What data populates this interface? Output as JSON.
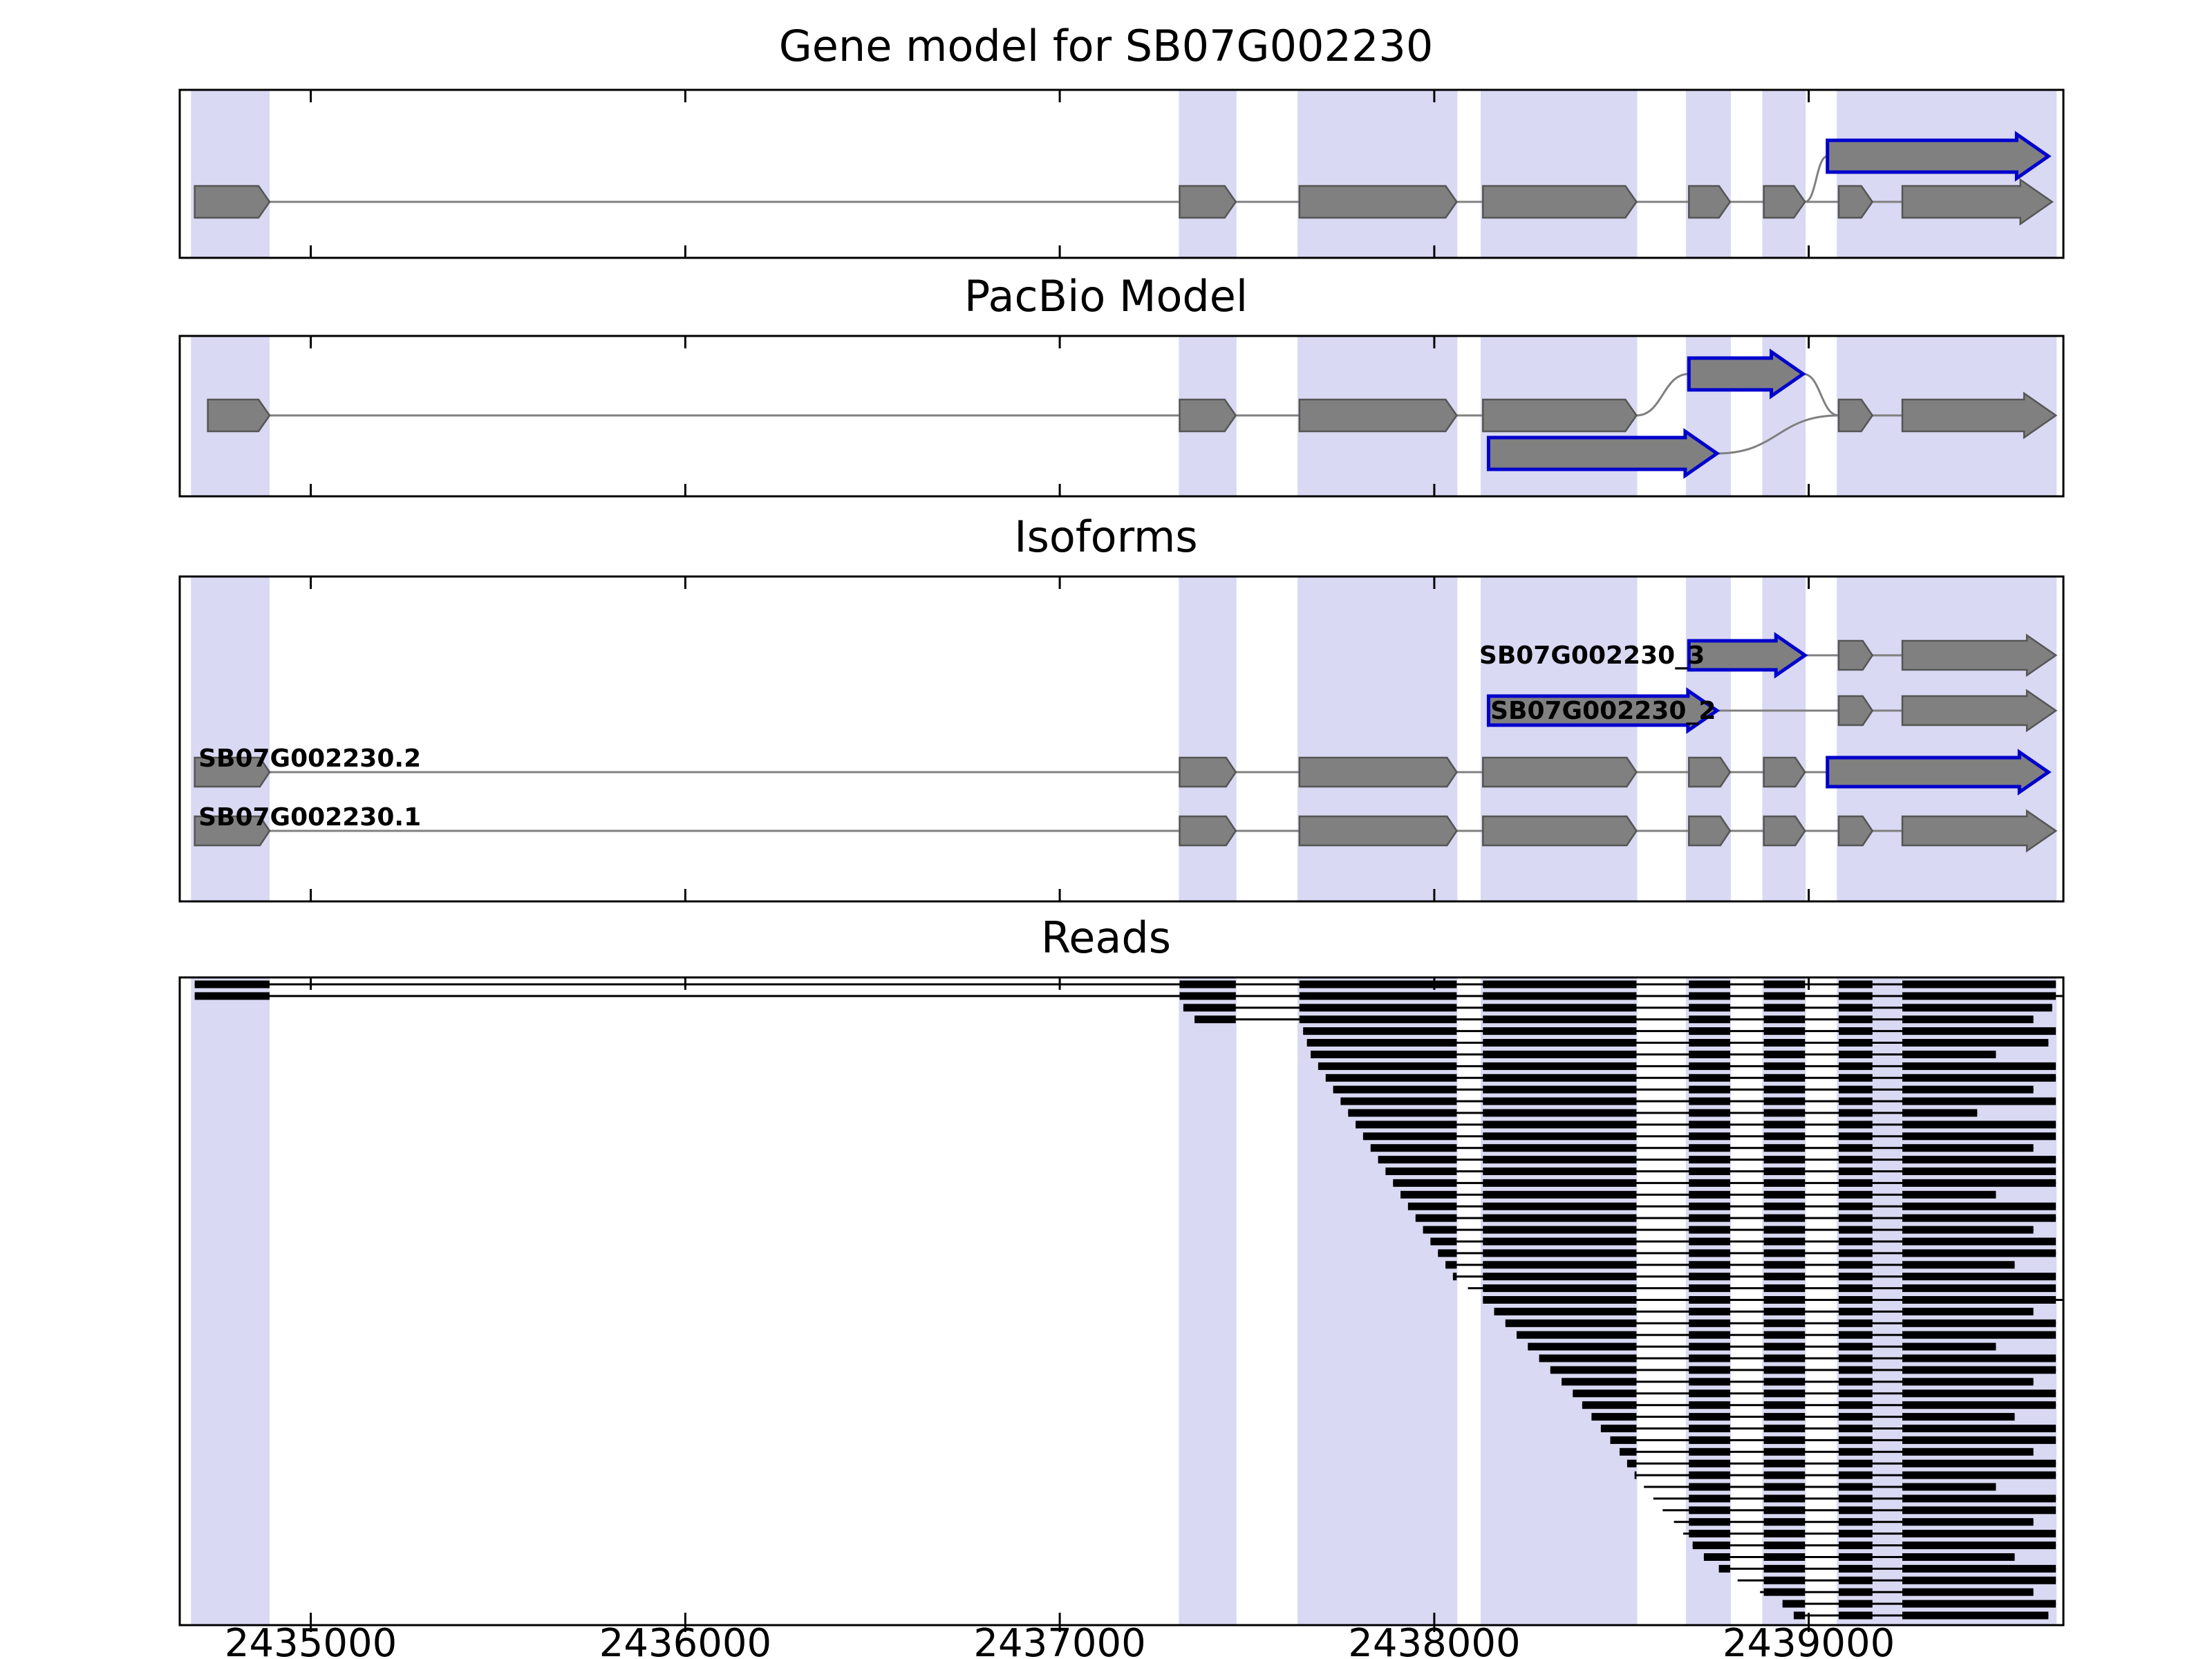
{
  "figure": {
    "titles": [
      "Gene model for SB07G002230",
      "PacBio Model",
      "Isoforms",
      "Reads"
    ]
  },
  "chart_data": {
    "type": "genome-browser-tracks",
    "x_range": [
      2434650,
      2439680
    ],
    "x_ticks": [
      2435000,
      2436000,
      2437000,
      2438000,
      2439000
    ],
    "highlight_regions": [
      [
        2434680,
        2434890
      ],
      [
        2437318,
        2437472
      ],
      [
        2437635,
        2438062
      ],
      [
        2438124,
        2438542
      ],
      [
        2438672,
        2438792
      ],
      [
        2438876,
        2438992
      ],
      [
        2439075,
        2439662
      ]
    ],
    "colors": {
      "band": "#d9d9f3",
      "exon_fill": "#808080",
      "exon_edge": "#555555",
      "blue_edge": "#0000cd",
      "line": "#808080",
      "read": "#000000",
      "axis": "#000000"
    },
    "tracks": [
      {
        "title": "Gene model for SB07G002230",
        "type": "gene_model",
        "main_exons": [
          {
            "span": [
              2434690,
              2434890
            ]
          },
          {
            "span": [
              2437320,
              2437470
            ]
          },
          {
            "span": [
              2437640,
              2438060
            ]
          },
          {
            "span": [
              2438130,
              2438540
            ]
          },
          {
            "span": [
              2438680,
              2438790
            ]
          },
          {
            "span": [
              2438880,
              2438990
            ]
          },
          {
            "span": [
              2439080,
              2439170
            ]
          },
          {
            "span": [
              2439250,
              2439650
            ],
            "arrow": true
          }
        ],
        "alt_features": [
          {
            "row": "above",
            "exons": [
              {
                "span": [
                  2439050,
                  2439640
                ],
                "blue": true,
                "arrow": true
              }
            ]
          }
        ],
        "connectors": [
          {
            "from": [
              2438990,
              "main"
            ],
            "to": [
              2439050,
              "above"
            ]
          }
        ],
        "skip_line_gaps": []
      },
      {
        "title": "PacBio Model",
        "type": "gene_model",
        "main_exons": [
          {
            "span": [
              2434725,
              2434890
            ]
          },
          {
            "span": [
              2437320,
              2437470
            ]
          },
          {
            "span": [
              2437640,
              2438060
            ]
          },
          {
            "span": [
              2438130,
              2438540
            ]
          },
          {
            "span": [
              2439080,
              2439170
            ]
          },
          {
            "span": [
              2439250,
              2439660
            ],
            "arrow": true
          }
        ],
        "alt_features": [
          {
            "row": "above",
            "exons": [
              {
                "span": [
                  2438680,
                  2438985
                ],
                "blue": true,
                "arrow": true
              }
            ]
          },
          {
            "row": "below",
            "exons": [
              {
                "span": [
                  2438145,
                  2438755
                ],
                "blue": true,
                "arrow": true
              }
            ]
          }
        ],
        "connectors": [
          {
            "from": [
              2438540,
              "main"
            ],
            "to": [
              2438680,
              "above"
            ]
          },
          {
            "from": [
              2438985,
              "above"
            ],
            "to": [
              2439080,
              "main"
            ]
          },
          {
            "from": [
              2438755,
              "below"
            ],
            "to": [
              2439080,
              "main"
            ]
          }
        ],
        "skip_line_gaps": [
          [
            2438540,
            2439080
          ]
        ]
      },
      {
        "title": "Isoforms",
        "type": "isoforms",
        "isoforms": [
          {
            "label": "SB07G002230_3",
            "label_x": 2438120,
            "exons": [
              {
                "span": [
                  2438680,
                  2438990
                ],
                "blue": true,
                "arrow": true
              },
              {
                "span": [
                  2439080,
                  2439170
                ]
              },
              {
                "span": [
                  2439250,
                  2439660
                ],
                "arrow": true
              }
            ]
          },
          {
            "label": "SB07G002230_2",
            "label_x": 2438150,
            "exons": [
              {
                "span": [
                  2438145,
                  2438755
                ],
                "blue": true,
                "arrow": true
              },
              {
                "span": [
                  2439080,
                  2439170
                ]
              },
              {
                "span": [
                  2439250,
                  2439660
                ],
                "arrow": true
              }
            ]
          },
          {
            "label": "SB07G002230.2",
            "label_x": 2434700,
            "exons": [
              {
                "span": [
                  2434690,
                  2434890
                ]
              },
              {
                "span": [
                  2437320,
                  2437470
                ]
              },
              {
                "span": [
                  2437640,
                  2438060
                ]
              },
              {
                "span": [
                  2438130,
                  2438540
                ]
              },
              {
                "span": [
                  2438680,
                  2438790
                ]
              },
              {
                "span": [
                  2438880,
                  2438990
                ]
              },
              {
                "span": [
                  2439050,
                  2439640
                ],
                "blue": true,
                "arrow": true
              }
            ]
          },
          {
            "label": "SB07G002230.1",
            "label_x": 2434700,
            "exons": [
              {
                "span": [
                  2434690,
                  2434890
                ]
              },
              {
                "span": [
                  2437320,
                  2437470
                ]
              },
              {
                "span": [
                  2437640,
                  2438060
                ]
              },
              {
                "span": [
                  2438130,
                  2438540
                ]
              },
              {
                "span": [
                  2438680,
                  2438790
                ]
              },
              {
                "span": [
                  2438880,
                  2438990
                ]
              },
              {
                "span": [
                  2439080,
                  2439170
                ]
              },
              {
                "span": [
                  2439250,
                  2439660
                ],
                "arrow": true
              }
            ]
          }
        ]
      },
      {
        "title": "Reads",
        "type": "reads",
        "exon_regions": [
          [
            2434690,
            2434890
          ],
          [
            2437320,
            2437470
          ],
          [
            2437640,
            2438060
          ],
          [
            2438130,
            2438540
          ],
          [
            2438680,
            2438790
          ],
          [
            2438880,
            2438990
          ],
          [
            2439080,
            2439170
          ],
          [
            2439250,
            2439660
          ]
        ],
        "reads": [
          [
            2434690,
            2439660
          ],
          [
            2434690,
            2439680
          ],
          [
            2437330,
            2439650
          ],
          [
            2437360,
            2439600
          ],
          [
            2437650,
            2439660
          ],
          [
            2437660,
            2439640
          ],
          [
            2437670,
            2439500
          ],
          [
            2437690,
            2439660
          ],
          [
            2437710,
            2439660
          ],
          [
            2437730,
            2439600
          ],
          [
            2437750,
            2439660
          ],
          [
            2437770,
            2439450
          ],
          [
            2437790,
            2439660
          ],
          [
            2437810,
            2439660
          ],
          [
            2437830,
            2439600
          ],
          [
            2437850,
            2439660
          ],
          [
            2437870,
            2439660
          ],
          [
            2437890,
            2439660
          ],
          [
            2437910,
            2439500
          ],
          [
            2437930,
            2439660
          ],
          [
            2437950,
            2439660
          ],
          [
            2437970,
            2439600
          ],
          [
            2437990,
            2439660
          ],
          [
            2438010,
            2439660
          ],
          [
            2438030,
            2439550
          ],
          [
            2438050,
            2439660
          ],
          [
            2438090,
            2439660
          ],
          [
            2438130,
            2439680
          ],
          [
            2438160,
            2439600
          ],
          [
            2438190,
            2439660
          ],
          [
            2438220,
            2439660
          ],
          [
            2438250,
            2439500
          ],
          [
            2438280,
            2439660
          ],
          [
            2438310,
            2439660
          ],
          [
            2438340,
            2439600
          ],
          [
            2438370,
            2439660
          ],
          [
            2438395,
            2439660
          ],
          [
            2438420,
            2439550
          ],
          [
            2438445,
            2439660
          ],
          [
            2438470,
            2439660
          ],
          [
            2438495,
            2439600
          ],
          [
            2438515,
            2439660
          ],
          [
            2438535,
            2439660
          ],
          [
            2438560,
            2439500
          ],
          [
            2438585,
            2439660
          ],
          [
            2438610,
            2439660
          ],
          [
            2438640,
            2439600
          ],
          [
            2438665,
            2439660
          ],
          [
            2438690,
            2439660
          ],
          [
            2438720,
            2439550
          ],
          [
            2438760,
            2439660
          ],
          [
            2438810,
            2439660
          ],
          [
            2438870,
            2439600
          ],
          [
            2438930,
            2439660
          ],
          [
            2438960,
            2439640
          ]
        ]
      }
    ]
  }
}
